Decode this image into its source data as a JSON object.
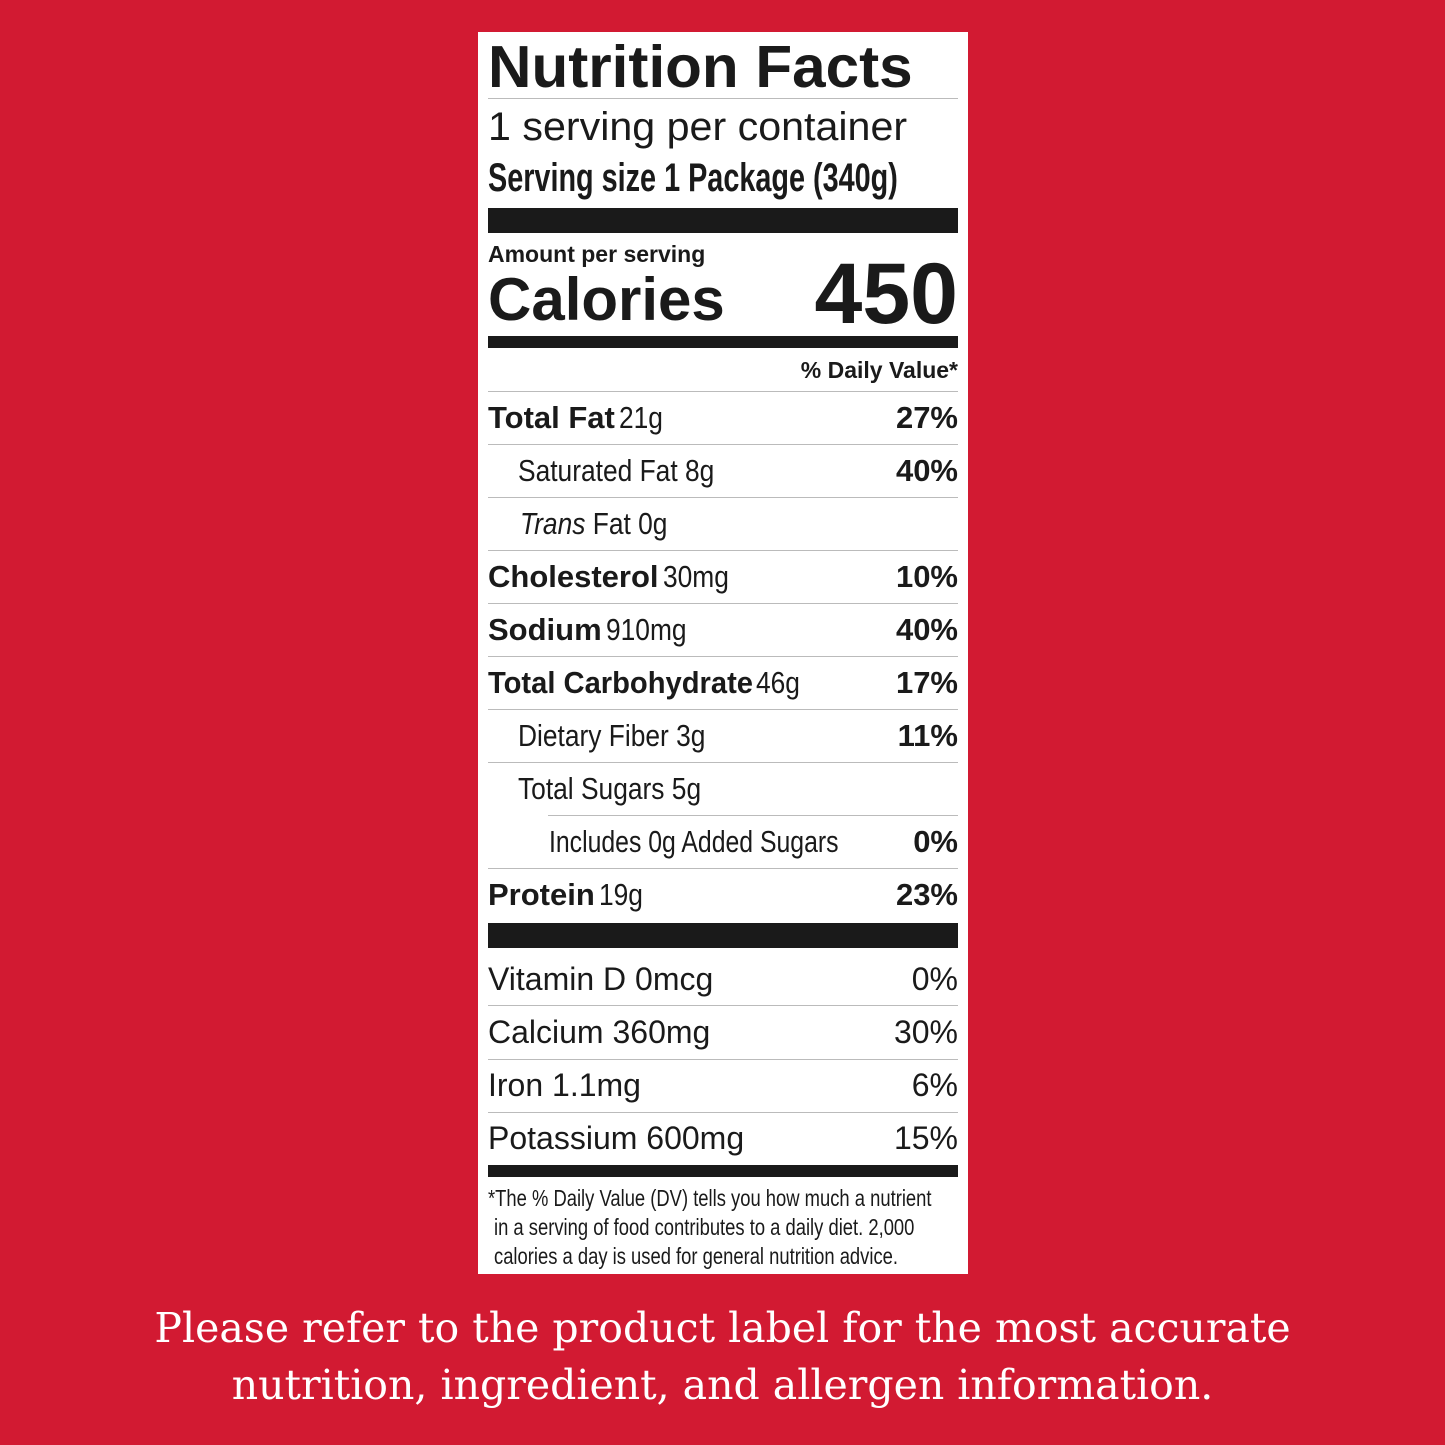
{
  "label": {
    "title": "Nutrition Facts",
    "servings_per_container": "1 serving per container",
    "serving_size": "Serving size 1 Package (340g)",
    "amount_per_serving": "Amount per serving",
    "calories_label": "Calories",
    "calories_value": "450",
    "daily_value_header": "% Daily Value*",
    "nutrients": [
      {
        "name": "Total Fat",
        "amount": "21g",
        "dv": "27%"
      },
      {
        "name": "Saturated Fat 8g",
        "dv": "40%"
      },
      {
        "name_italic": "Trans",
        "name": " Fat 0g",
        "dv": ""
      },
      {
        "name": "Cholesterol",
        "amount": "30mg",
        "dv": "10%"
      },
      {
        "name": "Sodium",
        "amount": "910mg",
        "dv": "40%"
      },
      {
        "name": "Total Carbohydrate",
        "amount": "46g",
        "dv": "17%"
      },
      {
        "name": "Dietary Fiber 3g",
        "dv": "11%"
      },
      {
        "name": "Total Sugars 5g",
        "dv": ""
      },
      {
        "name": "Includes 0g Added Sugars",
        "dv": "0%"
      },
      {
        "name": "Protein",
        "amount": "19g",
        "dv": "23%"
      }
    ],
    "vitamins": [
      {
        "name": "Vitamin D 0mcg",
        "dv": "0%"
      },
      {
        "name": "Calcium 360mg",
        "dv": "30%"
      },
      {
        "name": "Iron 1.1mg",
        "dv": "6%"
      },
      {
        "name": "Potassium 600mg",
        "dv": "15%"
      }
    ],
    "footnote": [
      "*The % Daily Value (DV) tells you how much a nutrient",
      "in a serving of food contributes to a daily diet. 2,000",
      "calories a day is used for general nutrition advice."
    ]
  },
  "disclaimer": [
    "Please refer to the product label for the most accurate",
    "nutrition, ingredient, and allergen information."
  ],
  "colors": {
    "background": "#d21a32",
    "label": "#ffffff",
    "text": "#1a1a1a"
  }
}
